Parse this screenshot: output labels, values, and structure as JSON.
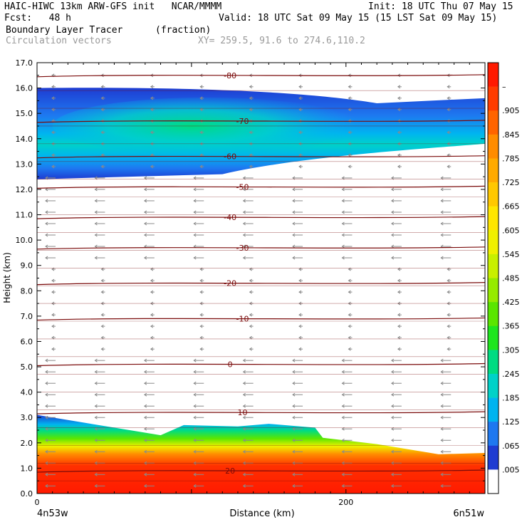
{
  "header": {
    "model_line": "HAIC-HIWC 13km ARW-GFS init   NCAR/MMMM",
    "init_line": "Init: 18 UTC Thu 07 May 15",
    "fcst_line": "Fcst:   48 h",
    "valid_line": "Valid: 18 UTC Sat 09 May 15 (15 LST Sat 09 May 15)",
    "field_name": "Boundary Layer Tracer",
    "field_units": "(fraction)",
    "vector_label": "Circulation vectors",
    "xy_label": "XY= 259.5, 91.6 to 274.6,110.2"
  },
  "chart_data": {
    "type": "heatmap",
    "xlabel": "Distance (km)",
    "ylabel": "Height (km)",
    "xlim": [
      0,
      290
    ],
    "ylim": [
      0,
      17
    ],
    "x_ticks": [
      {
        "v": 0,
        "label": "0"
      },
      {
        "v": 200,
        "label": "200"
      }
    ],
    "x_end_labels": {
      "left": "4n53w",
      "right": "6n51w"
    },
    "y_ticks": [
      "0.0",
      "1.0",
      "2.0",
      "3.0",
      "4.0",
      "5.0",
      "6.0",
      "7.0",
      "8.0",
      "9.0",
      "10.0",
      "11.0",
      "12.0",
      "13.0",
      "14.0",
      "15.0",
      "16.0",
      "17.0"
    ],
    "colorbar": {
      "labels": [
        "–",
        ".905",
        ".845",
        ".785",
        ".725",
        ".665",
        ".605",
        ".545",
        ".485",
        ".425",
        ".365",
        ".305",
        ".245",
        ".185",
        ".125",
        ".065",
        ".005"
      ],
      "colors": [
        "#ff1a00",
        "#ff3c00",
        "#ff6400",
        "#ff8c00",
        "#ffaa00",
        "#ffc800",
        "#ffe600",
        "#f0f000",
        "#c8f000",
        "#96eb00",
        "#5ae600",
        "#1ee61e",
        "#00dc82",
        "#00d2c8",
        "#00b4f0",
        "#1e78f0",
        "#1e3cd2",
        "#ffffff"
      ]
    },
    "bl_tracer_top_km": [
      {
        "x": 0,
        "top": 3.1
      },
      {
        "x": 20,
        "top": 2.9
      },
      {
        "x": 60,
        "top": 2.5
      },
      {
        "x": 80,
        "top": 2.3
      },
      {
        "x": 95,
        "top": 2.7
      },
      {
        "x": 130,
        "top": 2.65
      },
      {
        "x": 150,
        "top": 2.75
      },
      {
        "x": 180,
        "top": 2.6
      },
      {
        "x": 185,
        "top": 2.2
      },
      {
        "x": 220,
        "top": 1.95
      },
      {
        "x": 260,
        "top": 1.55
      },
      {
        "x": 290,
        "top": 1.6
      }
    ],
    "upper_tracer_layer_km": {
      "bottom": 12.4,
      "top": 16.0,
      "peak": 14.5,
      "x_extent": [
        0,
        290
      ]
    },
    "isotherms_c": [
      {
        "label": "-80",
        "h": 16.5
      },
      {
        "label": "-70",
        "h": 14.7
      },
      {
        "label": "-60",
        "h": 13.3
      },
      {
        "label": "-50",
        "h": 12.1
      },
      {
        "label": "-40",
        "h": 10.9
      },
      {
        "label": "-30",
        "h": 9.7
      },
      {
        "label": "-20",
        "h": 8.3
      },
      {
        "label": "-10",
        "h": 6.9
      },
      {
        "label": "0",
        "h": 5.1
      },
      {
        "label": "10",
        "h": 3.2
      },
      {
        "label": "20",
        "h": 0.9
      }
    ],
    "vector_direction": "westward (right to left)"
  }
}
